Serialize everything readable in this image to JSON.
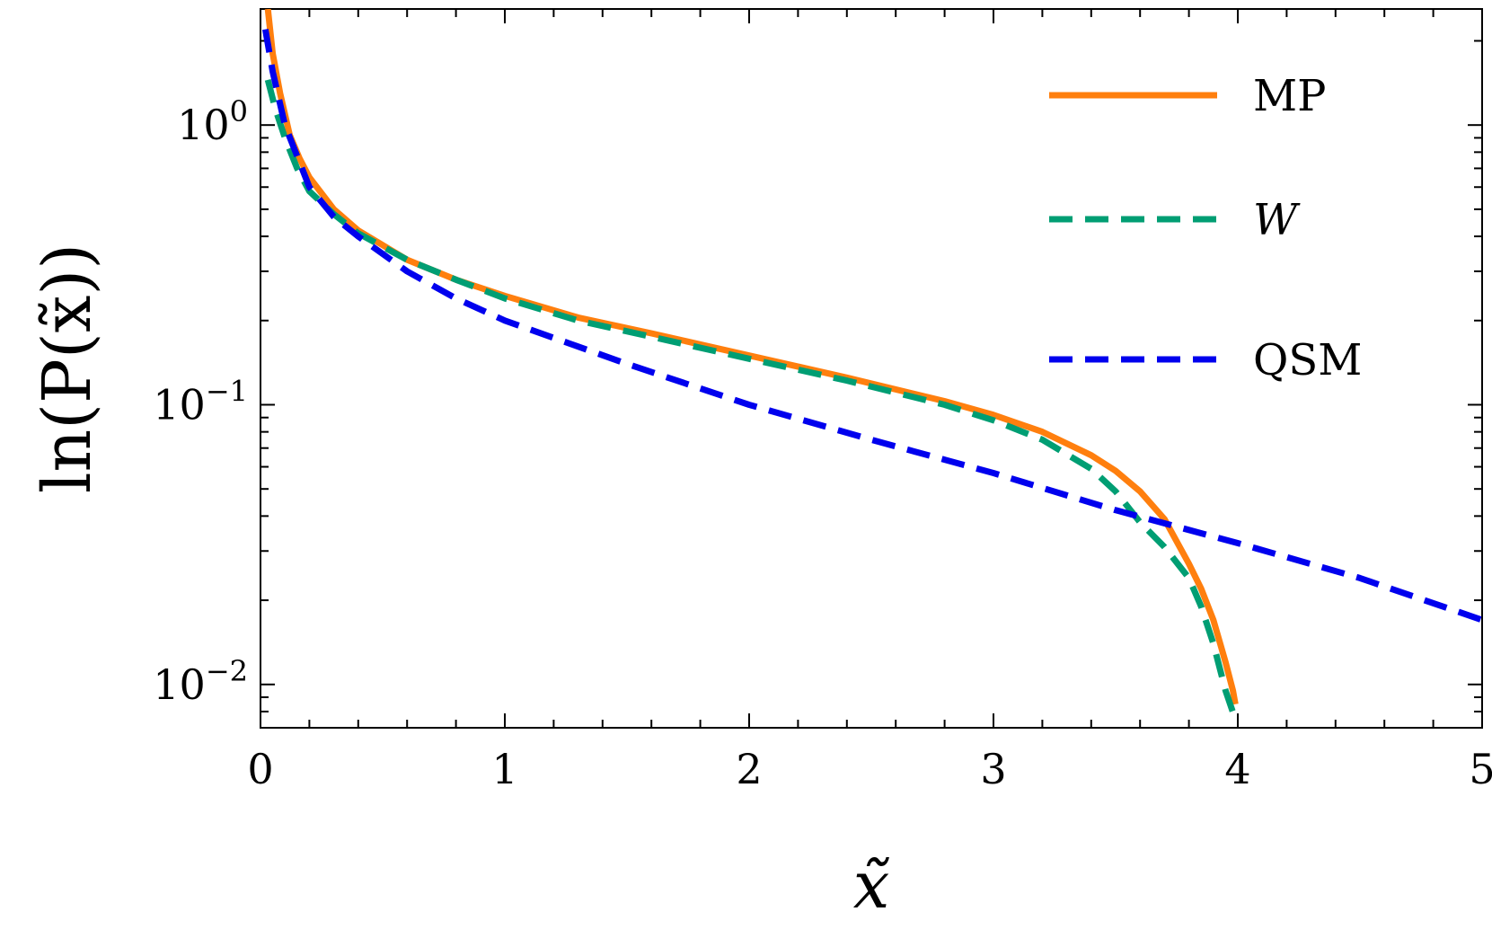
{
  "chart_data": {
    "type": "line",
    "title": "",
    "xlabel": "x̃",
    "ylabel": "ln(P(x̃))",
    "xlim": [
      0,
      5
    ],
    "ylim": [
      0.007,
      2.6
    ],
    "yscale": "log",
    "grid": false,
    "legend_position": "top-right",
    "x_ticks": [
      {
        "value": 0,
        "label": "0"
      },
      {
        "value": 1,
        "label": "1"
      },
      {
        "value": 2,
        "label": "2"
      },
      {
        "value": 3,
        "label": "3"
      },
      {
        "value": 4,
        "label": "4"
      },
      {
        "value": 5,
        "label": "5"
      }
    ],
    "y_ticks": [
      {
        "value": 1,
        "base": "10",
        "exp": "0"
      },
      {
        "value": 0.1,
        "base": "10",
        "exp": "−1"
      },
      {
        "value": 0.01,
        "base": "10",
        "exp": "−2"
      }
    ],
    "series": [
      {
        "name": "MP",
        "color": "#ff7f0e",
        "style": "solid",
        "x": [
          0.03,
          0.05,
          0.08,
          0.12,
          0.16,
          0.2,
          0.3,
          0.4,
          0.6,
          0.8,
          1.0,
          1.3,
          1.6,
          2.0,
          2.4,
          2.8,
          3.0,
          3.2,
          3.4,
          3.5,
          3.6,
          3.7,
          3.8,
          3.85,
          3.9,
          3.95,
          3.98,
          3.99
        ],
        "y": [
          2.6,
          1.8,
          1.3,
          0.92,
          0.76,
          0.65,
          0.5,
          0.42,
          0.33,
          0.28,
          0.245,
          0.205,
          0.18,
          0.15,
          0.125,
          0.103,
          0.092,
          0.08,
          0.066,
          0.058,
          0.049,
          0.039,
          0.027,
          0.022,
          0.017,
          0.012,
          0.0095,
          0.0085
        ]
      },
      {
        "name": "W",
        "color": "#009e73",
        "style": "dashed",
        "x": [
          0.03,
          0.06,
          0.1,
          0.15,
          0.2,
          0.3,
          0.4,
          0.6,
          0.8,
          1.0,
          1.3,
          1.6,
          2.0,
          2.4,
          2.8,
          3.0,
          3.2,
          3.4,
          3.5,
          3.6,
          3.7,
          3.8,
          3.85,
          3.9,
          3.95,
          3.99
        ],
        "y": [
          1.45,
          1.15,
          0.9,
          0.7,
          0.58,
          0.48,
          0.41,
          0.33,
          0.28,
          0.24,
          0.2,
          0.175,
          0.146,
          0.122,
          0.1,
          0.088,
          0.075,
          0.059,
          0.049,
          0.038,
          0.031,
          0.024,
          0.019,
          0.014,
          0.0095,
          0.0075
        ]
      },
      {
        "name": "QSM",
        "color": "#0000ee",
        "style": "dashed",
        "x": [
          0.02,
          0.05,
          0.1,
          0.2,
          0.3,
          0.4,
          0.6,
          0.8,
          1.0,
          1.5,
          2.0,
          2.5,
          3.0,
          3.5,
          4.0,
          4.5,
          5.0
        ],
        "y": [
          2.2,
          1.55,
          1.0,
          0.6,
          0.47,
          0.4,
          0.3,
          0.24,
          0.2,
          0.14,
          0.1,
          0.075,
          0.057,
          0.042,
          0.032,
          0.024,
          0.017
        ]
      }
    ]
  }
}
